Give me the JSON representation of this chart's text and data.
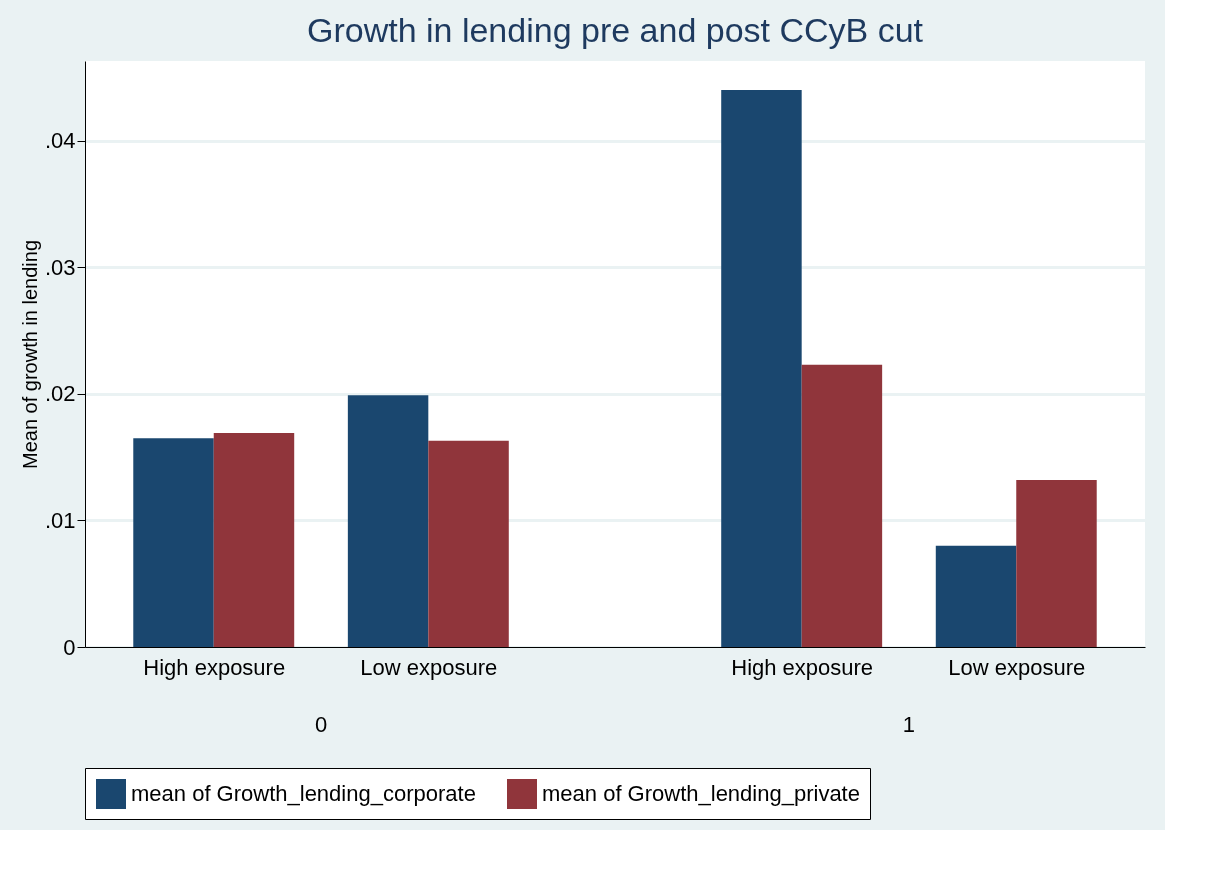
{
  "chart_data": {
    "type": "bar",
    "title": "Growth in lending pre and post CCyB cut",
    "ylabel": "Mean of growth in lending",
    "categories": [
      "High exposure",
      "Low exposure",
      "High exposure",
      "Low exposure"
    ],
    "series": [
      {
        "name": "mean of Growth_lending_corporate",
        "color": "#1a476f",
        "values": [
          0.0165,
          0.0199,
          0.044,
          0.008
        ]
      },
      {
        "name": "mean of Growth_lending_private",
        "color": "#90353b",
        "values": [
          0.0169,
          0.0163,
          0.0223,
          0.0132
        ]
      }
    ],
    "annotations": [
      "0",
      "1"
    ],
    "ylim": [
      0,
      0.0463
    ],
    "yticks": [
      {
        "value": 0,
        "label": "0"
      },
      {
        "value": 0.01,
        "label": ".01"
      },
      {
        "value": 0.02,
        "label": ".02"
      },
      {
        "value": 0.03,
        "label": ".03"
      },
      {
        "value": 0.04,
        "label": ".04"
      }
    ],
    "grid": "y",
    "legend": "bottom"
  }
}
